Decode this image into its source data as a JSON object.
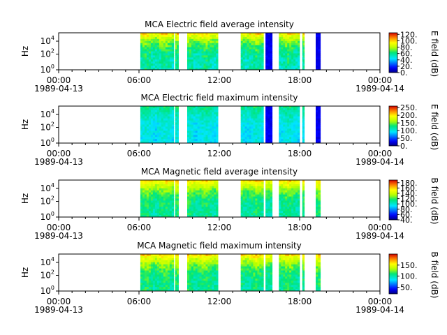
{
  "chart_data": [
    {
      "type": "heatmap",
      "title": "MCA  Electric field average intensity",
      "ylabel": "Hz",
      "y_ticks": [
        "10^0",
        "10^2",
        "10^4"
      ],
      "colorbar_label": "E field (dB)",
      "colorbar_ticks": [
        "0.",
        "20.",
        "40.",
        "60.",
        "80.",
        "100.",
        "120."
      ],
      "colorbar_range": [
        0,
        125
      ],
      "baseline_db": 55,
      "drift_db": 8,
      "low_freq_db": 40,
      "data_segments_hours": [
        [
          6.1,
          8.6
        ],
        [
          8.7,
          8.95
        ],
        [
          9.6,
          11.9
        ],
        [
          13.6,
          15.3
        ],
        [
          15.45,
          15.95
        ],
        [
          16.45,
          18.0
        ],
        [
          18.2,
          18.35
        ],
        [
          19.2,
          19.55
        ]
      ],
      "dark_segments_hours": [
        [
          15.45,
          15.95
        ],
        [
          19.2,
          19.55
        ]
      ]
    },
    {
      "type": "heatmap",
      "title": "MCA  Electric field maximum intensity",
      "ylabel": "Hz",
      "y_ticks": [
        "10^0",
        "10^2",
        "10^4"
      ],
      "colorbar_label": "E field (dB)",
      "colorbar_ticks": [
        "0.",
        "50.",
        "100.",
        "150.",
        "200.",
        "250."
      ],
      "colorbar_range": [
        0,
        260
      ],
      "baseline_db": 95,
      "drift_db": 12,
      "low_freq_db": 30,
      "data_segments_hours": [
        [
          6.1,
          8.6
        ],
        [
          8.7,
          8.95
        ],
        [
          9.6,
          11.9
        ],
        [
          13.6,
          15.3
        ],
        [
          15.45,
          15.95
        ],
        [
          16.45,
          18.0
        ],
        [
          18.2,
          18.35
        ],
        [
          19.2,
          19.55
        ]
      ],
      "dark_segments_hours": [
        [
          15.45,
          15.95
        ],
        [
          19.2,
          19.55
        ]
      ]
    },
    {
      "type": "heatmap",
      "title": "MCA  Magnetic field average intensity",
      "ylabel": "Hz",
      "y_ticks": [
        "10^0",
        "10^2",
        "10^4"
      ],
      "colorbar_label": "B field (dB)",
      "colorbar_ticks": [
        "40.",
        "60.",
        "80.",
        "100.",
        "120.",
        "140.",
        "160.",
        "180."
      ],
      "colorbar_range": [
        40,
        190
      ],
      "baseline_db": 110,
      "drift_db": 8,
      "low_freq_db": 45,
      "data_segments_hours": [
        [
          6.1,
          8.6
        ],
        [
          8.7,
          8.95
        ],
        [
          9.6,
          11.9
        ],
        [
          13.6,
          15.3
        ],
        [
          15.45,
          15.95
        ],
        [
          16.45,
          18.0
        ],
        [
          18.2,
          18.35
        ],
        [
          19.2,
          19.55
        ]
      ],
      "dark_segments_hours": []
    },
    {
      "type": "heatmap",
      "title": "MCA  Magnetic field maximum intensity",
      "ylabel": "Hz",
      "y_ticks": [
        "10^0",
        "10^2",
        "10^4"
      ],
      "colorbar_label": "B field (dB)",
      "colorbar_ticks": [
        "50.",
        "100.",
        "150."
      ],
      "colorbar_range": [
        20,
        200
      ],
      "baseline_db": 105,
      "drift_db": 10,
      "low_freq_db": 55,
      "data_segments_hours": [
        [
          6.1,
          8.6
        ],
        [
          8.7,
          8.95
        ],
        [
          9.6,
          11.9
        ],
        [
          13.6,
          15.3
        ],
        [
          15.45,
          15.95
        ],
        [
          16.45,
          18.0
        ],
        [
          18.2,
          18.35
        ],
        [
          19.2,
          19.55
        ]
      ],
      "dark_segments_hours": []
    }
  ],
  "x_axis": {
    "ticks": [
      {
        "hour": 0,
        "time": "00:00",
        "date": "1989-04-13"
      },
      {
        "hour": 6,
        "time": "06:00",
        "date": ""
      },
      {
        "hour": 12,
        "time": "12:00",
        "date": ""
      },
      {
        "hour": 18,
        "time": "18:00",
        "date": ""
      },
      {
        "hour": 24,
        "time": "00:00",
        "date": "1989-04-14"
      }
    ],
    "range_hours": [
      0,
      24
    ]
  }
}
